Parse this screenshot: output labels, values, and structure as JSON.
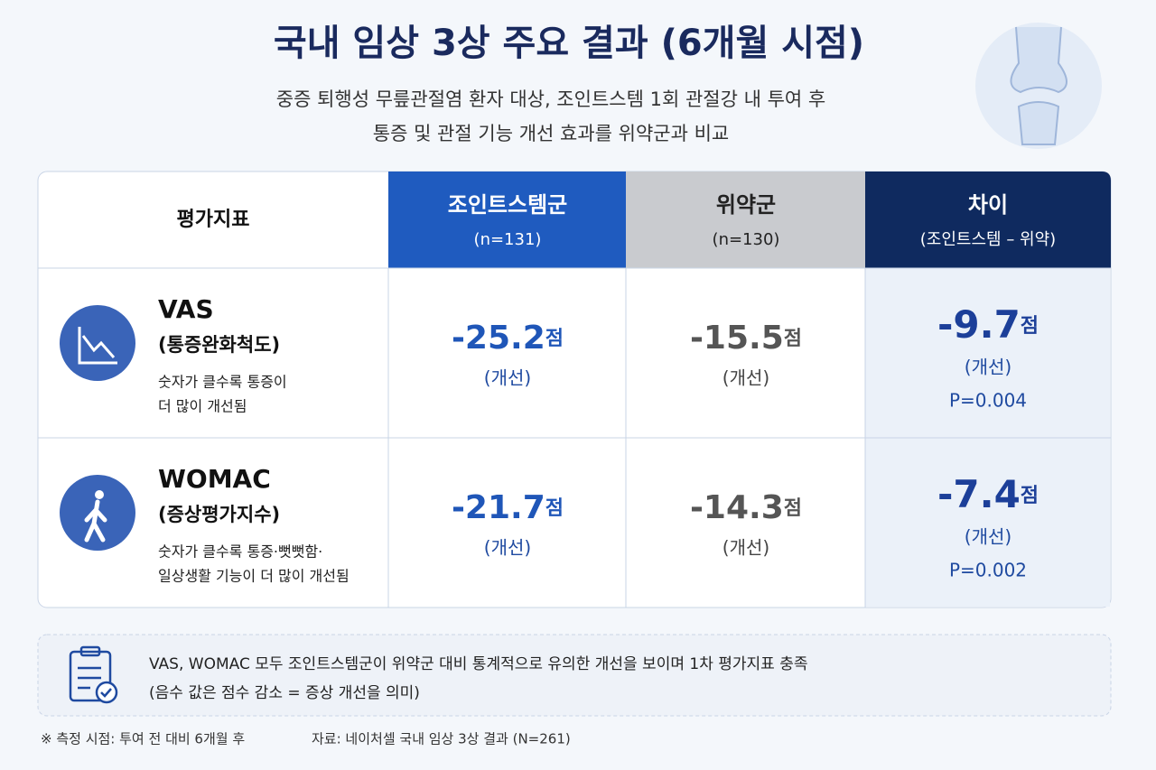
{
  "header": {
    "title": "국내 임상 3상 주요 결과 (6개월 시점)",
    "subtitle": [
      "중증 퇴행성 무릎관절염 환자 대상, 조인트스템 1회 관절강 내 투여 후",
      "통증 및 관절 기능 개선 효과를 위약군과 비교"
    ]
  },
  "table": {
    "columns": [
      {
        "title": "평가지표"
      },
      {
        "title": "조인트스템군",
        "sub": "(n=131)"
      },
      {
        "title": "위약군",
        "sub": "(n=130)"
      },
      {
        "title": "차이",
        "sub": "(조인트스템 – 위약)"
      }
    ],
    "rows": [
      {
        "name": "VAS",
        "sub": "(통증완화척도)",
        "desc": [
          "숫자가 클수록 통증이",
          "더 많이 개선됨"
        ],
        "cells": [
          {
            "value": "-25.2",
            "unit": "점",
            "note": "(개선)"
          },
          {
            "value": "-15.5",
            "unit": "점",
            "note": "(개선)"
          },
          {
            "value": "-9.7",
            "unit": "점",
            "note": "(개선)",
            "p": "P=0.004"
          }
        ]
      },
      {
        "name": "WOMAC",
        "sub": "(증상평가지수)",
        "desc": [
          "숫자가 클수록 통증·뻣뻣함·",
          "일상생활 기능이 더 많이 개선됨"
        ],
        "cells": [
          {
            "value": "-21.7",
            "unit": "점",
            "note": "(개선)"
          },
          {
            "value": "-14.3",
            "unit": "점",
            "note": "(개선)"
          },
          {
            "value": "-7.4",
            "unit": "점",
            "note": "(개선)",
            "p": "P=0.002"
          }
        ]
      }
    ]
  },
  "note": [
    "VAS, WOMAC 모두 조인트스템군이 위약군 대비 통계적으로 유의한 개선을 보이며 1차 평가지표 충족",
    "(음수 값은 점수 감소 = 증상 개선을 의미)"
  ],
  "footer": [
    "※ 측정 시점: 투여 전 대비 6개월 후",
    "자료: 네이처셀 국내 임상 3상 결과 (N=261)"
  ]
}
